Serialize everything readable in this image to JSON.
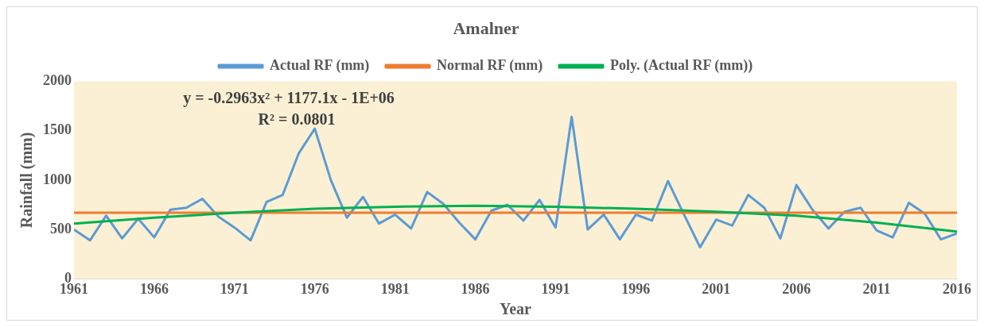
{
  "chart_data": {
    "type": "line",
    "title": "Amalner",
    "xlabel": "Year",
    "ylabel": "Rainfall (mm)",
    "x": [
      1961,
      1962,
      1963,
      1964,
      1965,
      1966,
      1967,
      1968,
      1969,
      1970,
      1971,
      1972,
      1973,
      1974,
      1975,
      1976,
      1977,
      1978,
      1979,
      1980,
      1981,
      1982,
      1983,
      1984,
      1985,
      1986,
      1987,
      1988,
      1989,
      1990,
      1991,
      1992,
      1993,
      1994,
      1995,
      1996,
      1997,
      1998,
      1999,
      2000,
      2001,
      2002,
      2003,
      2004,
      2005,
      2006,
      2007,
      2008,
      2009,
      2010,
      2011,
      2012,
      2013,
      2014,
      2015,
      2016
    ],
    "series": [
      {
        "name": "Actual RF (mm)",
        "color": "#5b9bd5",
        "values": [
          500,
          390,
          640,
          410,
          610,
          420,
          700,
          720,
          810,
          630,
          520,
          390,
          780,
          850,
          1270,
          1520,
          1000,
          620,
          830,
          560,
          650,
          510,
          880,
          760,
          570,
          400,
          690,
          750,
          590,
          800,
          520,
          1640,
          500,
          650,
          400,
          650,
          590,
          990,
          650,
          320,
          600,
          540,
          850,
          720,
          410,
          950,
          700,
          510,
          680,
          720,
          490,
          420,
          770,
          660,
          400,
          460
        ]
      },
      {
        "name": "Normal RF (mm)",
        "color": "#ed7d31",
        "values": [
          670,
          670,
          670,
          670,
          670,
          670,
          670,
          670,
          670,
          670,
          670,
          670,
          670,
          670,
          670,
          670,
          670,
          670,
          670,
          670,
          670,
          670,
          670,
          670,
          670,
          670,
          670,
          670,
          670,
          670,
          670,
          670,
          670,
          670,
          670,
          670,
          670,
          670,
          670,
          670,
          670,
          670,
          670,
          670,
          670,
          670,
          670,
          670,
          670,
          670,
          670,
          670,
          670,
          670,
          670,
          670
        ]
      },
      {
        "name": "Poly. (Actual RF (mm))",
        "color": "#00b050",
        "type": "line",
        "x": [
          1961,
          1966,
          1971,
          1976,
          1981,
          1986,
          1991,
          1996,
          2001,
          2006,
          2011,
          2016
        ],
        "values": [
          560,
          620,
          670,
          710,
          730,
          740,
          730,
          710,
          680,
          640,
          570,
          480
        ]
      }
    ],
    "xlim": [
      1961,
      2016
    ],
    "xticks": [
      1961,
      1966,
      1971,
      1976,
      1981,
      1986,
      1991,
      1996,
      2001,
      2006,
      2011,
      2016
    ],
    "ylim": [
      0,
      2000
    ],
    "yticks": [
      0,
      500,
      1000,
      1500,
      2000
    ],
    "grid": false,
    "legend": "top",
    "marker": "none",
    "line_style": "solid",
    "annotations": [
      "y = -0.2963x² + 1177.1x - 1E+06",
      "R² = 0.0801"
    ]
  }
}
